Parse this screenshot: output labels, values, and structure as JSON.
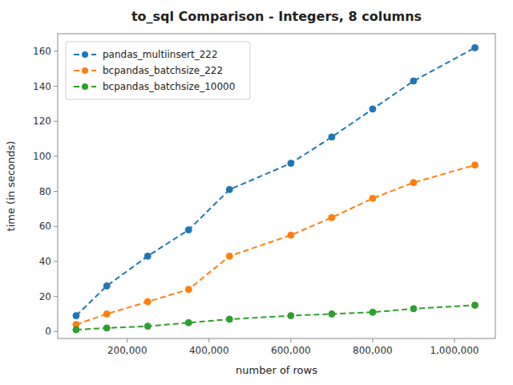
{
  "chart_data": {
    "type": "line",
    "title": "to_sql Comparison - Integers, 8 columns",
    "xlabel": "number of rows",
    "ylabel": "time (in seconds)",
    "x": [
      75000,
      150000,
      250000,
      350000,
      450000,
      600000,
      700000,
      800000,
      900000,
      1050000
    ],
    "series": [
      {
        "name": "pandas_multiinsert_222",
        "color": "#1f77b4",
        "marker": "circle",
        "line_style": "dashed",
        "values": [
          9,
          26,
          43,
          58,
          81,
          96,
          111,
          127,
          143,
          162
        ]
      },
      {
        "name": "bcpandas_batchsize_222",
        "color": "#ff7f0e",
        "marker": "circle",
        "line_style": "dashed",
        "values": [
          4,
          10,
          17,
          24,
          43,
          55,
          65,
          76,
          85,
          95
        ]
      },
      {
        "name": "bcpandas_batchsize_10000",
        "color": "#2ca02c",
        "marker": "circle",
        "line_style": "dashed",
        "values": [
          1,
          2,
          3,
          5,
          7,
          9,
          10,
          11,
          13,
          15
        ]
      }
    ],
    "xlim": [
      30000,
      1100000
    ],
    "ylim": [
      -4,
      170
    ],
    "xticks": [
      {
        "value": 200000,
        "label": "200,000"
      },
      {
        "value": 400000,
        "label": "400,000"
      },
      {
        "value": 600000,
        "label": "600,000"
      },
      {
        "value": 800000,
        "label": "800,000"
      },
      {
        "value": 1000000,
        "label": "1,000,000"
      }
    ],
    "yticks": [
      0,
      20,
      40,
      60,
      80,
      100,
      120,
      140,
      160
    ],
    "legend": "upper-left",
    "grid": false
  }
}
